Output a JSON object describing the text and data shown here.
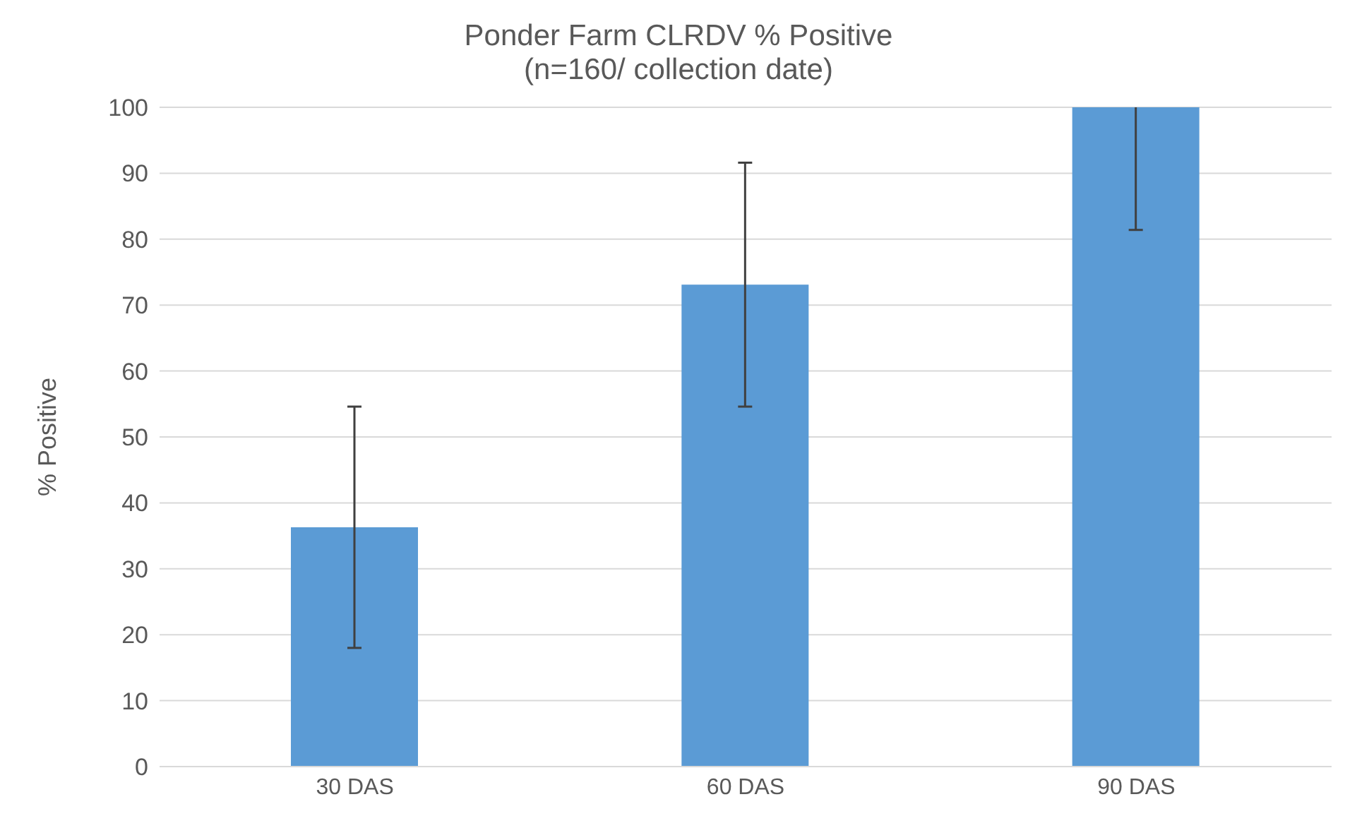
{
  "chart_data": {
    "type": "bar",
    "title": "Ponder Farm CLRDV % Positive",
    "subtitle": "(n=160/ collection date)",
    "ylabel": "% Positive",
    "categories": [
      "30 DAS",
      "60 DAS",
      "90 DAS"
    ],
    "values": [
      36.3,
      73.1,
      100
    ],
    "errors": [
      18.3,
      18.5,
      18.6
    ],
    "color": "#5b9bd5",
    "ylim": [
      0,
      100
    ],
    "yticks": [
      0,
      10,
      20,
      30,
      40,
      50,
      60,
      70,
      80,
      90,
      100
    ],
    "grid": "y",
    "legend": false
  }
}
